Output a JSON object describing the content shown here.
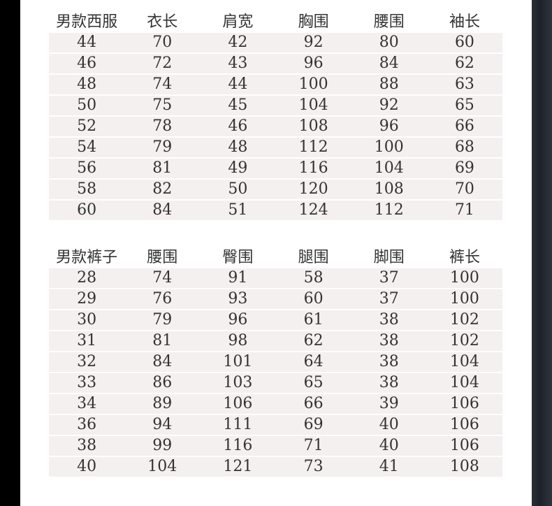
{
  "tables": [
    {
      "headers": [
        "男款西服",
        "衣长",
        "肩宽",
        "胸围",
        "腰围",
        "袖长"
      ],
      "rows": [
        [
          "44",
          "70",
          "42",
          "92",
          "80",
          "60"
        ],
        [
          "46",
          "72",
          "43",
          "96",
          "84",
          "62"
        ],
        [
          "48",
          "74",
          "44",
          "100",
          "88",
          "63"
        ],
        [
          "50",
          "75",
          "45",
          "104",
          "92",
          "65"
        ],
        [
          "52",
          "78",
          "46",
          "108",
          "96",
          "66"
        ],
        [
          "54",
          "79",
          "48",
          "112",
          "100",
          "68"
        ],
        [
          "56",
          "81",
          "49",
          "116",
          "104",
          "69"
        ],
        [
          "58",
          "82",
          "50",
          "120",
          "108",
          "70"
        ],
        [
          "60",
          "84",
          "51",
          "124",
          "112",
          "71"
        ]
      ]
    },
    {
      "headers": [
        "男款裤子",
        "腰围",
        "臀围",
        "腿围",
        "脚围",
        "裤长"
      ],
      "rows": [
        [
          "28",
          "74",
          "91",
          "58",
          "37",
          "100"
        ],
        [
          "29",
          "76",
          "93",
          "60",
          "37",
          "100"
        ],
        [
          "30",
          "79",
          "96",
          "61",
          "38",
          "102"
        ],
        [
          "31",
          "81",
          "98",
          "62",
          "38",
          "102"
        ],
        [
          "32",
          "84",
          "101",
          "64",
          "38",
          "104"
        ],
        [
          "33",
          "86",
          "103",
          "65",
          "38",
          "104"
        ],
        [
          "34",
          "89",
          "106",
          "66",
          "39",
          "106"
        ],
        [
          "36",
          "94",
          "111",
          "69",
          "40",
          "106"
        ],
        [
          "38",
          "99",
          "116",
          "71",
          "40",
          "106"
        ],
        [
          "40",
          "104",
          "121",
          "73",
          "41",
          "108"
        ]
      ]
    }
  ],
  "colors": {
    "row_bg": "#f3f0ef",
    "text": "#333333",
    "panel": "#ffffff"
  }
}
